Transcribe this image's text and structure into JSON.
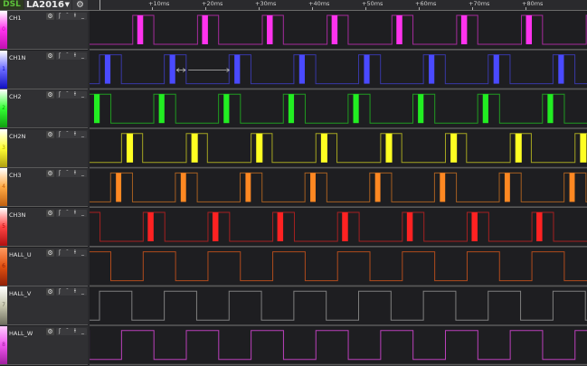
{
  "toolbar": {
    "logo_text": "DSL",
    "device_name": "LA2016",
    "device_dropdown_icon": "caret-down-icon",
    "device_settings_icon": "gear-icon"
  },
  "ruler": {
    "ticks": [
      {
        "label": "+10ms",
        "t": 10
      },
      {
        "label": "+20ms",
        "t": 20
      },
      {
        "label": "+30ms",
        "t": 30
      },
      {
        "label": "+40ms",
        "t": 40
      },
      {
        "label": "+50ms",
        "t": 50
      },
      {
        "label": "+60ms",
        "t": 60
      },
      {
        "label": "+70ms",
        "t": 70
      },
      {
        "label": "+80ms",
        "t": 80
      }
    ]
  },
  "trigger_icons": [
    "rising-edge-icon",
    "high-level-icon",
    "falling-edge-icon",
    "low-level-icon"
  ],
  "trigger_glyphs": [
    "ʃ",
    "¯",
    "ɫ",
    "_"
  ],
  "signal_period_ms": 12.14,
  "channels": [
    {
      "index": "0",
      "name": "CH1",
      "color": "#ff33ee",
      "strip": [
        "#ffffff",
        "#ff33ee",
        "#c010b0"
      ],
      "rise_ms": 6.4,
      "high_ms": 3.95,
      "burst_offset_ms": 0.85,
      "burst_ms": 1.1
    },
    {
      "index": "1",
      "name": "CH1N",
      "color": "#4a4aff",
      "strip": [
        "#ffffff",
        "#6a6aff",
        "#1010c0"
      ],
      "rise_ms": 0.17,
      "high_ms": 4.1,
      "burst_offset_ms": 1.0,
      "burst_ms": 1.05
    },
    {
      "index": "2",
      "name": "CH2",
      "color": "#22ee22",
      "strip": [
        "#ffffff",
        "#33ff33",
        "#10a010"
      ],
      "rise_ms": 10.34,
      "high_ms": 4.1,
      "burst_offset_ms": 0.95,
      "burst_ms": 1.05
    },
    {
      "index": "3",
      "name": "CH2N",
      "color": "#ffff22",
      "strip": [
        "#ffffff",
        "#ffff33",
        "#b0a010"
      ],
      "rise_ms": 4.3,
      "high_ms": 3.95,
      "burst_offset_ms": 0.95,
      "burst_ms": 1.2
    },
    {
      "index": "4",
      "name": "CH3",
      "color": "#ff8822",
      "strip": [
        "#ffffff",
        "#ffaa44",
        "#c06010"
      ],
      "rise_ms": 2.25,
      "high_ms": 4.1,
      "burst_offset_ms": 1.0,
      "burst_ms": 1.0
    },
    {
      "index": "5",
      "name": "CH3N",
      "color": "#ff2222",
      "strip": [
        "#ffffff",
        "#ff4444",
        "#b01010"
      ],
      "rise_ms": 8.36,
      "high_ms": 4.05,
      "burst_offset_ms": 0.85,
      "burst_ms": 1.1
    },
    {
      "index": "6",
      "name": "HALL_U",
      "color": "#c0501c",
      "strip": [
        "#ff9a60",
        "#e05010",
        "#902008"
      ],
      "rise_ms": 8.36,
      "high_ms": 6.07,
      "burst_offset_ms": 0,
      "burst_ms": 0
    },
    {
      "index": "7",
      "name": "HALL_V",
      "color": "#8a8a8a",
      "strip": [
        "#ffffff",
        "#c8c8b0",
        "#707060"
      ],
      "rise_ms": 0.17,
      "high_ms": 6.07,
      "burst_offset_ms": 0,
      "burst_ms": 0
    },
    {
      "index": "8",
      "name": "HALL_W",
      "color": "#cc44cc",
      "strip": [
        "#ffccff",
        "#ee55ee",
        "#a020a0"
      ],
      "rise_ms": 4.3,
      "high_ms": 6.07,
      "burst_offset_ms": 0,
      "burst_ms": 0
    }
  ],
  "measurement": {
    "channel": "CH1N",
    "start_ms": 14.6,
    "end_ms": 24.5
  }
}
